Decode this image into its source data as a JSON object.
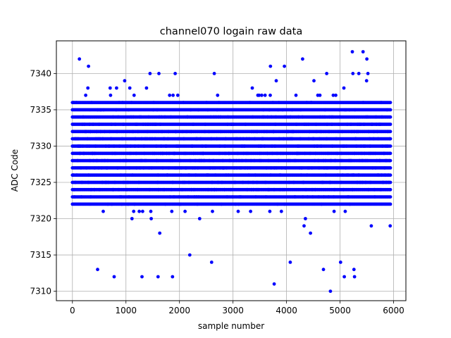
{
  "chart_data": {
    "type": "scatter",
    "title": "channel070 logain raw data",
    "xlabel": "sample number",
    "ylabel": "ADC Code",
    "xlim": [
      -300,
      6230
    ],
    "ylim": [
      7308.7,
      7344.5
    ],
    "xticks": [
      0,
      1000,
      2000,
      3000,
      4000,
      5000,
      6000
    ],
    "yticks": [
      7310,
      7315,
      7320,
      7325,
      7330,
      7335,
      7340
    ],
    "grid": true,
    "marker_color": "#0000ff",
    "x_start": 0,
    "x_end": 5940,
    "y_core": [
      7322,
      7336
    ],
    "y_outliers": [
      [
        130,
        7342
      ],
      [
        300,
        7341
      ],
      [
        1450,
        7340
      ],
      [
        1920,
        7340
      ],
      [
        2650,
        7340
      ],
      [
        3700,
        7341
      ],
      [
        3960,
        7341
      ],
      [
        4300,
        7342
      ],
      [
        4750,
        7340
      ],
      [
        5230,
        7343
      ],
      [
        5430,
        7343
      ],
      [
        5500,
        7342
      ],
      [
        5350,
        7340
      ],
      [
        1600,
        7312
      ],
      [
        1300,
        7312
      ],
      [
        1870,
        7312
      ],
      [
        780,
        7312
      ],
      [
        470,
        7313
      ],
      [
        2600,
        7314
      ],
      [
        3770,
        7311
      ],
      [
        4070,
        7314
      ],
      [
        4690,
        7313
      ],
      [
        4820,
        7310
      ],
      [
        5080,
        7312
      ],
      [
        5270,
        7312
      ],
      [
        5260,
        7313
      ],
      [
        5010,
        7314
      ]
    ]
  }
}
